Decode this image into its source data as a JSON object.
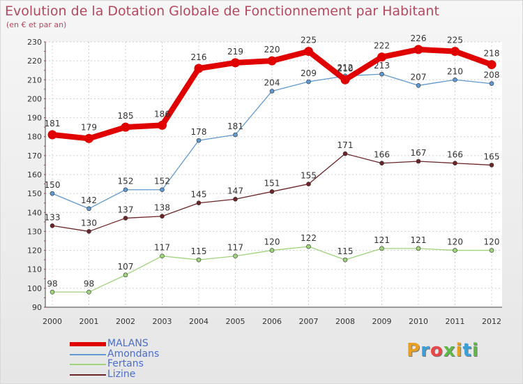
{
  "title": "Evolution de la Dotation Globale de Fonctionnement par Habitant",
  "subtitle": "(en € et par an)",
  "brand": "Proxiti",
  "colors": {
    "title": "#b5485f",
    "axis_text": "#333333",
    "grid": "#cfcfcf",
    "legend_text": "#4a6ed0"
  },
  "chart_data": {
    "type": "line",
    "x": [
      "2000",
      "2001",
      "2002",
      "2003",
      "2004",
      "2005",
      "2006",
      "2007",
      "2008",
      "2009",
      "2010",
      "2011",
      "2012"
    ],
    "ylim": [
      90,
      230
    ],
    "yticks": [
      90,
      100,
      110,
      120,
      130,
      140,
      150,
      160,
      170,
      180,
      190,
      200,
      210,
      220,
      230
    ],
    "grid": true,
    "legend_position": "bottom-left",
    "series": [
      {
        "name": "Lizine",
        "color": "#6b2428",
        "values": [
          133,
          130,
          137,
          138,
          145,
          147,
          151,
          155,
          171,
          166,
          167,
          166,
          165
        ]
      },
      {
        "name": "Fertans",
        "color": "#9fd47b",
        "values": [
          98,
          98,
          107,
          117,
          115,
          117,
          120,
          122,
          115,
          121,
          121,
          120,
          120
        ]
      },
      {
        "name": "Amondans",
        "color": "#5f99cf",
        "values": [
          150,
          142,
          152,
          152,
          178,
          181,
          204,
          209,
          212,
          213,
          207,
          210,
          208
        ]
      },
      {
        "name": "MALANS",
        "color": "#e00000",
        "values": [
          181,
          179,
          185,
          186,
          216,
          219,
          220,
          225,
          210,
          222,
          226,
          225,
          218
        ]
      }
    ],
    "legend_order": [
      "MALANS",
      "Amondans",
      "Fertans",
      "Lizine"
    ]
  }
}
